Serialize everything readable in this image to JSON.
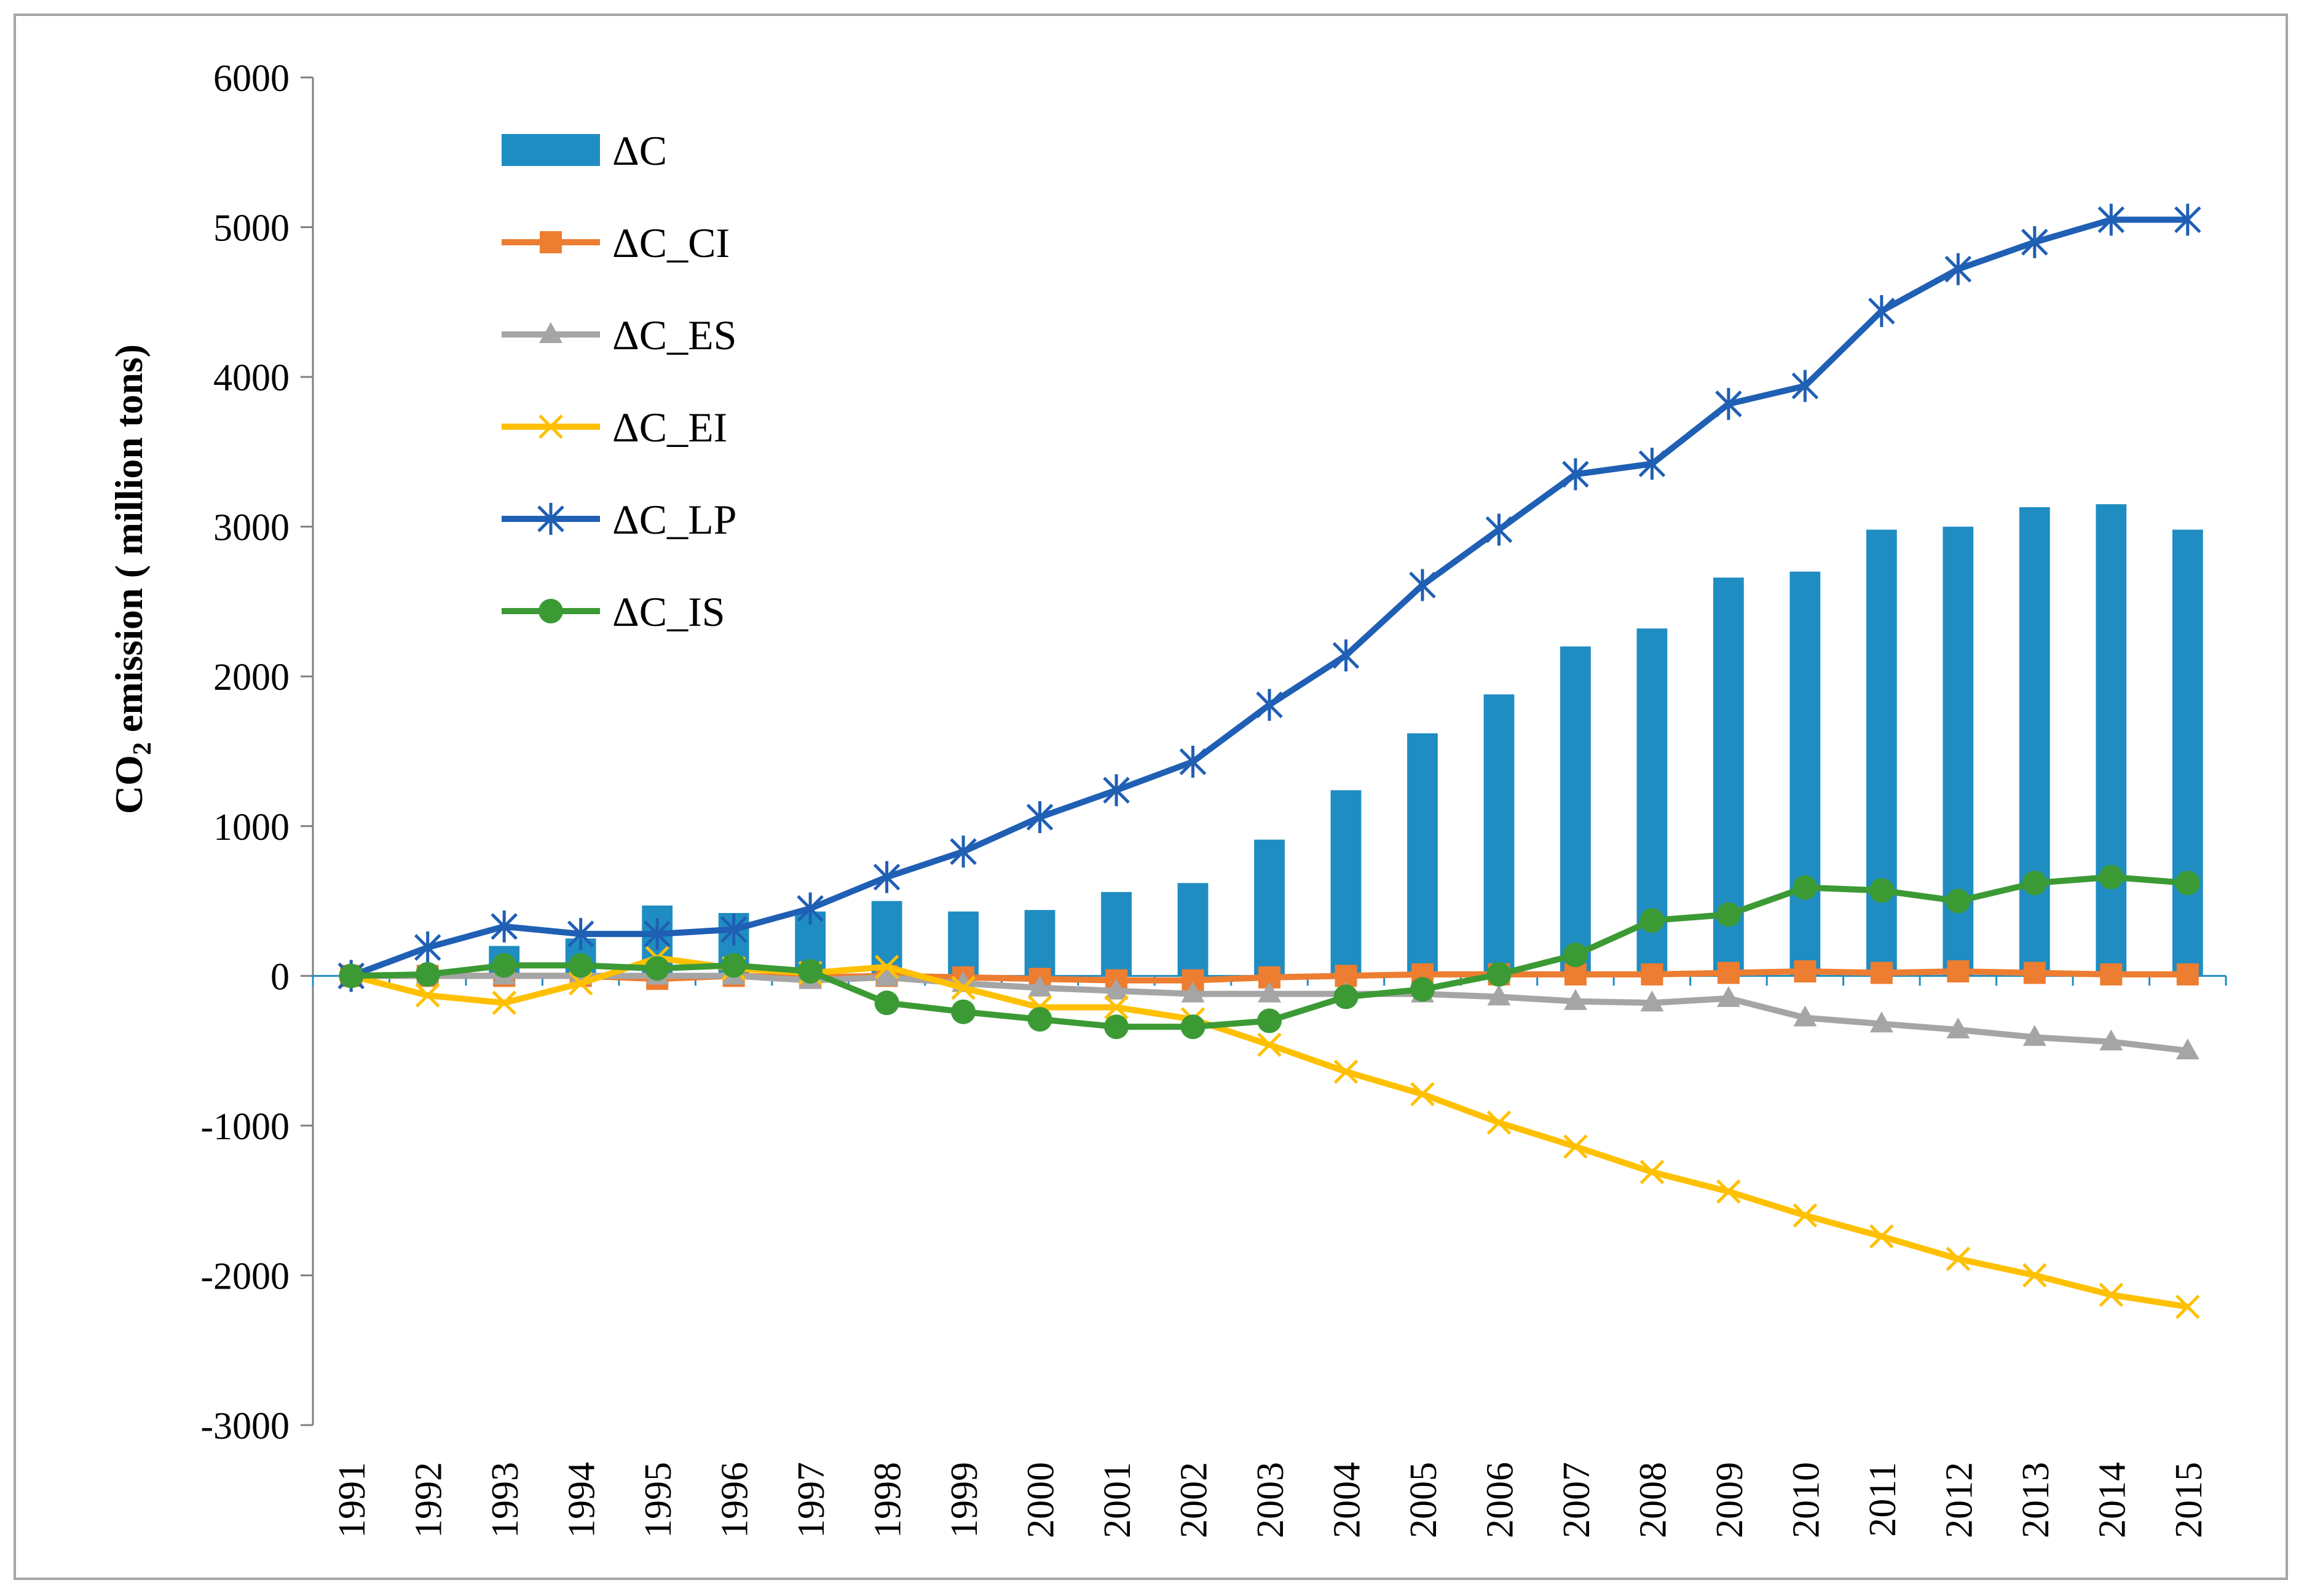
{
  "chart_data": {
    "type": "bar+line",
    "title": "",
    "xlabel": "",
    "ylabel": "CO2 emission ( million tons)",
    "ylabel_parts": {
      "main": "CO",
      "sub": "2",
      "rest": " emission ( million tons)"
    },
    "ylim": [
      -3000,
      6000
    ],
    "yticks": [
      6000,
      5000,
      4000,
      3000,
      2000,
      1000,
      0,
      -1000,
      -2000,
      -3000
    ],
    "grid": false,
    "legend_position": "top-left",
    "categories": [
      "1991",
      "1992",
      "1993",
      "1994",
      "1995",
      "1996",
      "1997",
      "1998",
      "1999",
      "2000",
      "2001",
      "2002",
      "2003",
      "2004",
      "2005",
      "2006",
      "2007",
      "2008",
      "2009",
      "2010",
      "2011",
      "2012",
      "2013",
      "2014",
      "2015"
    ],
    "series": [
      {
        "name": "ΔC",
        "kind": "bar",
        "color": "#1f8dc2",
        "marker": "none",
        "values": [
          0,
          15,
          200,
          250,
          470,
          420,
          430,
          500,
          430,
          440,
          560,
          620,
          910,
          1240,
          1620,
          1880,
          2200,
          2320,
          2660,
          2700,
          2980,
          3000,
          3130,
          3150,
          2980
        ]
      },
      {
        "name": "ΔC_CI",
        "kind": "line",
        "color": "#ed7d31",
        "marker": "square",
        "values": [
          0,
          0,
          0,
          0,
          -20,
          0,
          -10,
          0,
          -10,
          -20,
          -30,
          -30,
          -10,
          0,
          10,
          10,
          10,
          10,
          20,
          30,
          20,
          30,
          20,
          10,
          10
        ]
      },
      {
        "name": "ΔC_ES",
        "kind": "line",
        "color": "#a5a5a5",
        "marker": "triangle",
        "values": [
          0,
          0,
          0,
          0,
          0,
          0,
          -30,
          -10,
          -50,
          -80,
          -100,
          -120,
          -120,
          -120,
          -120,
          -140,
          -170,
          -180,
          -150,
          -280,
          -320,
          -360,
          -410,
          -440,
          -500
        ]
      },
      {
        "name": "ΔC_EI",
        "kind": "line",
        "color": "#ffc000",
        "marker": "x",
        "values": [
          0,
          -130,
          -180,
          -50,
          120,
          50,
          20,
          60,
          -80,
          -210,
          -210,
          -290,
          -460,
          -640,
          -790,
          -980,
          -1140,
          -1310,
          -1440,
          -1600,
          -1740,
          -1890,
          -2000,
          -2130,
          -2210
        ]
      },
      {
        "name": "ΔC_LP",
        "kind": "line",
        "color": "#1f5fb4",
        "marker": "star",
        "values": [
          0,
          190,
          330,
          280,
          280,
          310,
          450,
          660,
          830,
          1060,
          1240,
          1430,
          1810,
          2140,
          2610,
          2980,
          3350,
          3420,
          3820,
          3940,
          4440,
          4720,
          4900,
          5050,
          5050
        ]
      },
      {
        "name": "ΔC_IS",
        "kind": "line",
        "color": "#3c9a35",
        "marker": "circle",
        "values": [
          0,
          10,
          70,
          70,
          50,
          70,
          30,
          -180,
          -240,
          -290,
          -340,
          -340,
          -300,
          -140,
          -90,
          10,
          140,
          370,
          410,
          590,
          570,
          500,
          620,
          660,
          620
        ]
      }
    ]
  }
}
